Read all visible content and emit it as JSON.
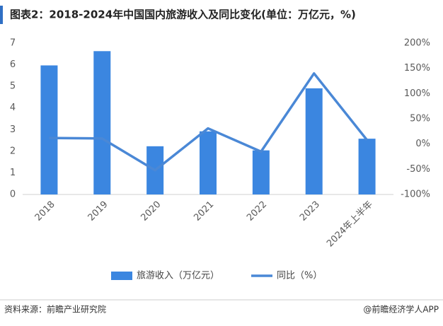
{
  "chart_data": {
    "type": "bar_line",
    "title": "图表2：2018-2024年中国国内旅游收入及同比变化(单位：万亿元，%)",
    "categories": [
      "2018",
      "2019",
      "2020",
      "2021",
      "2022",
      "2023",
      "2024年上半年"
    ],
    "series": [
      {
        "name": "旅游收入（万亿元）",
        "type": "bar",
        "color": "#3b86e0",
        "values": [
          5.97,
          6.63,
          2.23,
          2.92,
          2.04,
          4.91,
          2.58
        ]
      },
      {
        "name": "同比（%）",
        "type": "line",
        "axis": "y2",
        "color": "#4a88d6",
        "values": [
          12,
          11,
          -52,
          31,
          -15,
          140,
          8
        ]
      }
    ],
    "ylim": [
      0,
      7
    ],
    "yticks": [
      0,
      1,
      2,
      3,
      4,
      5,
      6,
      7
    ],
    "y2lim": [
      -100,
      200
    ],
    "y2ticks": [
      {
        "value": -100,
        "label": "-100%"
      },
      {
        "value": -50,
        "label": "-50%"
      },
      {
        "value": 0,
        "label": "0%"
      },
      {
        "value": 50,
        "label": "50%"
      },
      {
        "value": 100,
        "label": "100%"
      },
      {
        "value": 150,
        "label": "150%"
      },
      {
        "value": 200,
        "label": "200%"
      }
    ],
    "grid": false,
    "legend": "bottom",
    "source": "资料来源：前瞻产业研究院",
    "credit": "@前瞻经济学人APP"
  }
}
